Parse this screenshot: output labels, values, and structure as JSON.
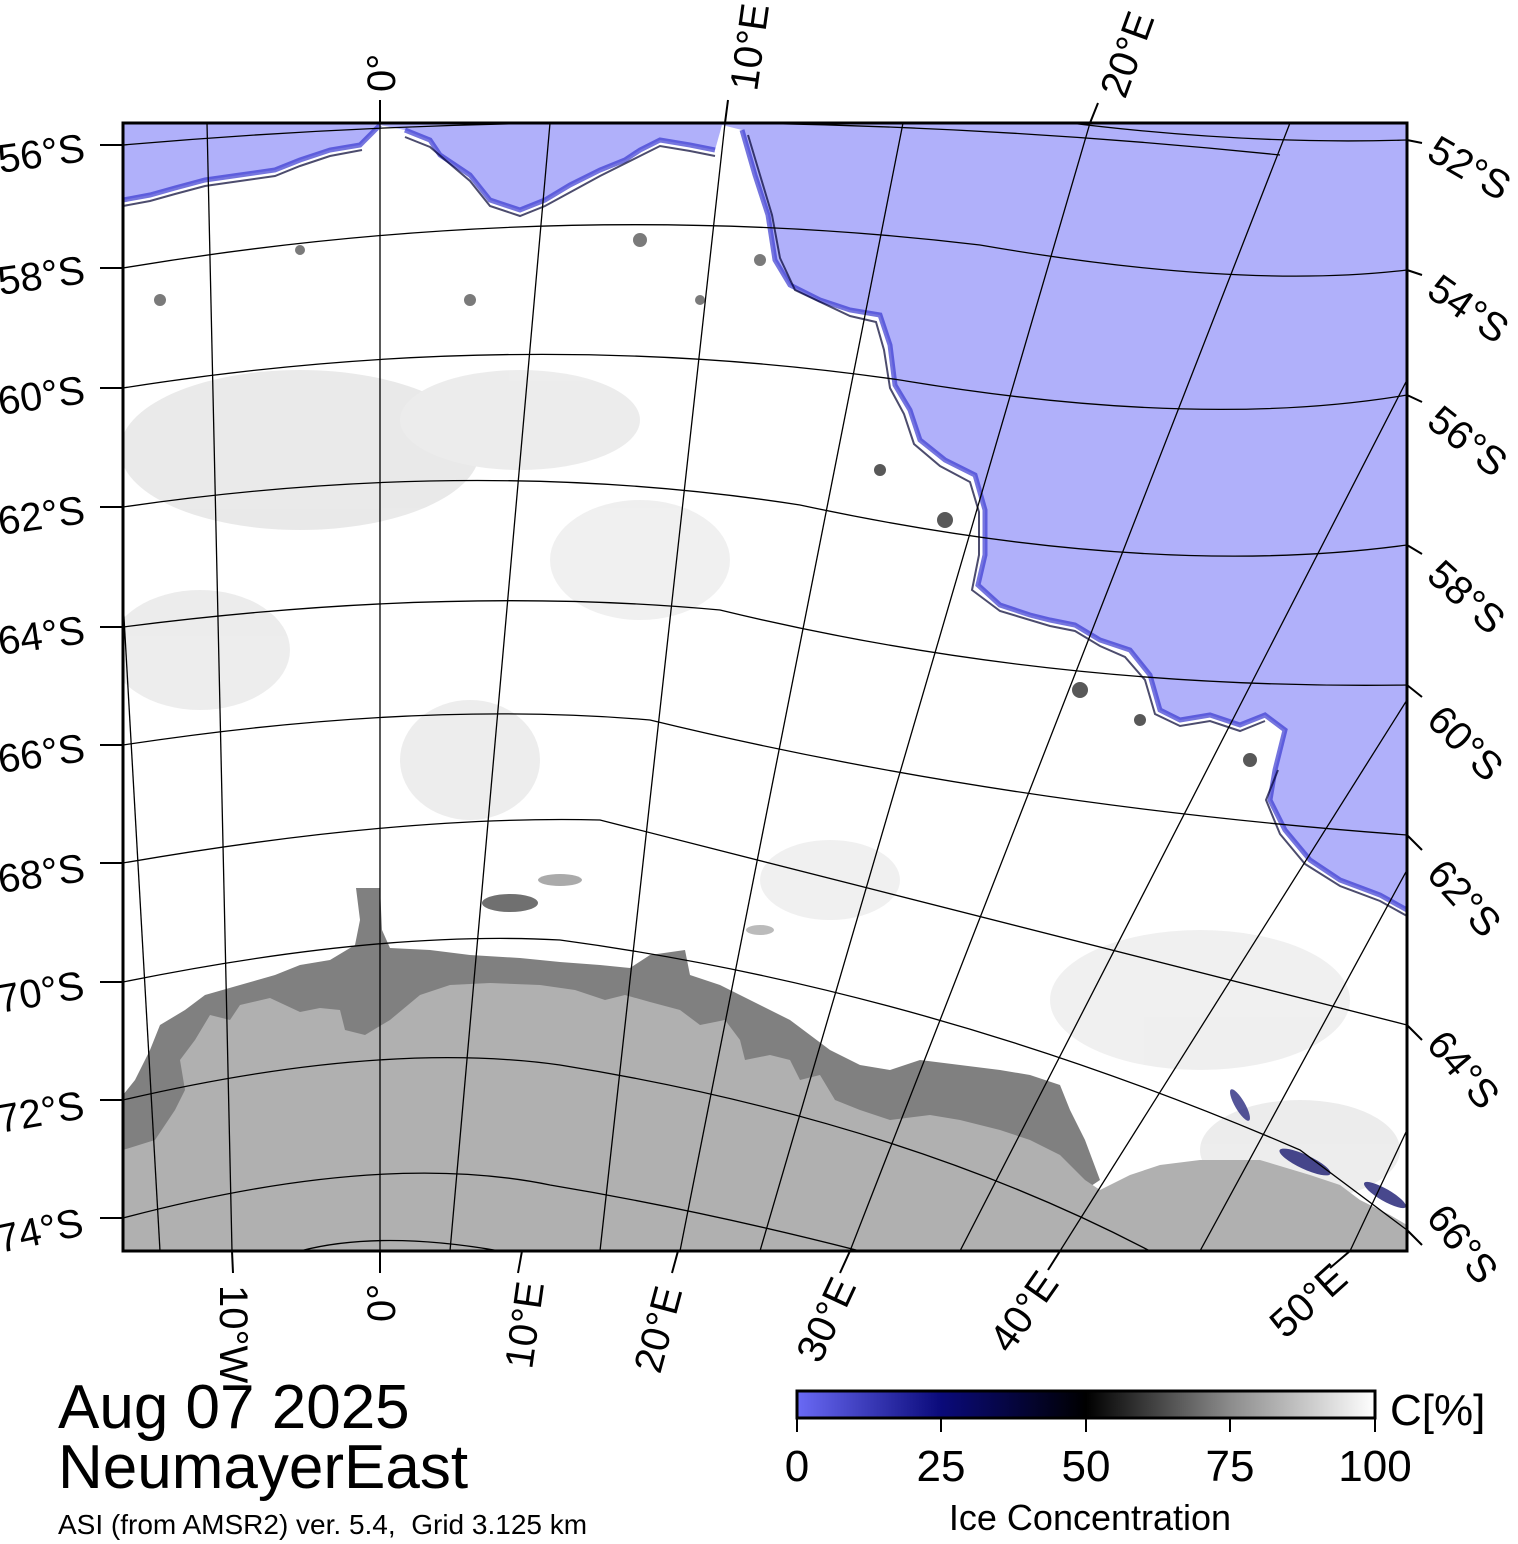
{
  "date_label": "Aug 07 2025",
  "region_label": "NeumayerEast",
  "source_label": "ASI (from AMSR2) ver. 5.4,  Grid 3.125 km",
  "colors": {
    "open_water": "#b0b0fa",
    "ice_high": "#ffffff",
    "ice_shelf": "#808080",
    "land": "#b0b0b0",
    "graticule": "#000000"
  },
  "latitude_labels_left": [
    "56°S",
    "58°S",
    "60°S",
    "62°S",
    "64°S",
    "66°S",
    "68°S",
    "70°S",
    "72°S",
    "74°S"
  ],
  "latitude_labels_right": [
    "52°S",
    "54°S",
    "56°S",
    "58°S",
    "60°S",
    "62°S",
    "64°S",
    "66°S"
  ],
  "longitude_labels_top": [
    "0°",
    "10°E",
    "20°E"
  ],
  "longitude_labels_bottom": [
    "10°W",
    "0°",
    "10°E",
    "20°E",
    "30°E",
    "40°E",
    "50°E"
  ],
  "colorbar": {
    "title": "Ice Concentration",
    "unit": "C[%]",
    "ticks": [
      "0",
      "25",
      "50",
      "75",
      "100"
    ],
    "stops": [
      {
        "value": 0,
        "color": "#6a6af5"
      },
      {
        "value": 25,
        "color": "#0a0a7a"
      },
      {
        "value": 50,
        "color": "#000000"
      },
      {
        "value": 75,
        "color": "#8c8c8c"
      },
      {
        "value": 100,
        "color": "#ffffff"
      }
    ]
  }
}
